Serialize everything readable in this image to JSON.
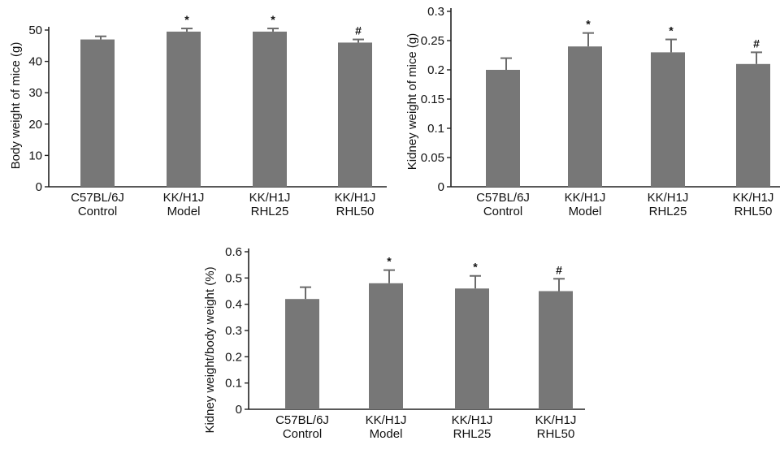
{
  "chart_data": [
    {
      "id": "body",
      "type": "bar",
      "ylabel": "Body weight of mice (g)",
      "categories": [
        [
          "C57BL/6J",
          "Control"
        ],
        [
          "KK/H1J",
          "Model"
        ],
        [
          "KK/H1J",
          "RHL25"
        ],
        [
          "KK/H1J",
          "RHL50"
        ]
      ],
      "values": [
        47,
        49.5,
        49.5,
        46
      ],
      "errors": [
        1,
        1,
        1,
        1
      ],
      "significance": [
        "",
        "*",
        "*",
        "#"
      ],
      "ylim": [
        0,
        50
      ],
      "yticks": [
        0,
        10,
        20,
        30,
        40,
        50
      ],
      "ytick_labels": [
        "0",
        "10",
        "20",
        "30",
        "40",
        "50"
      ],
      "bar_color": "#777777"
    },
    {
      "id": "kidney",
      "type": "bar",
      "ylabel": "Kidney weight of mice (g)",
      "categories": [
        [
          "C57BL/6J",
          "Control"
        ],
        [
          "KK/H1J",
          "Model"
        ],
        [
          "KK/H1J",
          "RHL25"
        ],
        [
          "KK/H1J",
          "RHL50"
        ]
      ],
      "values": [
        0.2,
        0.24,
        0.23,
        0.21
      ],
      "errors": [
        0.02,
        0.023,
        0.022,
        0.02
      ],
      "significance": [
        "",
        "*",
        "*",
        "#"
      ],
      "ylim": [
        0,
        0.3
      ],
      "yticks": [
        0,
        0.05,
        0.1,
        0.15,
        0.2,
        0.25,
        0.3
      ],
      "ytick_labels": [
        "0",
        "0.05",
        "0.1",
        "0.15",
        "0.2",
        "0.25",
        "0.3"
      ],
      "bar_color": "#777777"
    },
    {
      "id": "ratio",
      "type": "bar",
      "ylabel": "Kidney weight/body weight (%)",
      "categories": [
        [
          "C57BL/6J",
          "Control"
        ],
        [
          "KK/H1J",
          "Model"
        ],
        [
          "KK/H1J",
          "RHL25"
        ],
        [
          "KK/H1J",
          "RHL50"
        ]
      ],
      "values": [
        0.42,
        0.48,
        0.46,
        0.45
      ],
      "errors": [
        0.045,
        0.05,
        0.048,
        0.047
      ],
      "significance": [
        "",
        "*",
        "*",
        "#"
      ],
      "ylim": [
        0,
        0.6
      ],
      "yticks": [
        0,
        0.1,
        0.2,
        0.3,
        0.4,
        0.5,
        0.6
      ],
      "ytick_labels": [
        "0",
        "0.1",
        "0.2",
        "0.3",
        "0.4",
        "0.5",
        "0.6"
      ],
      "bar_color": "#777777"
    }
  ]
}
